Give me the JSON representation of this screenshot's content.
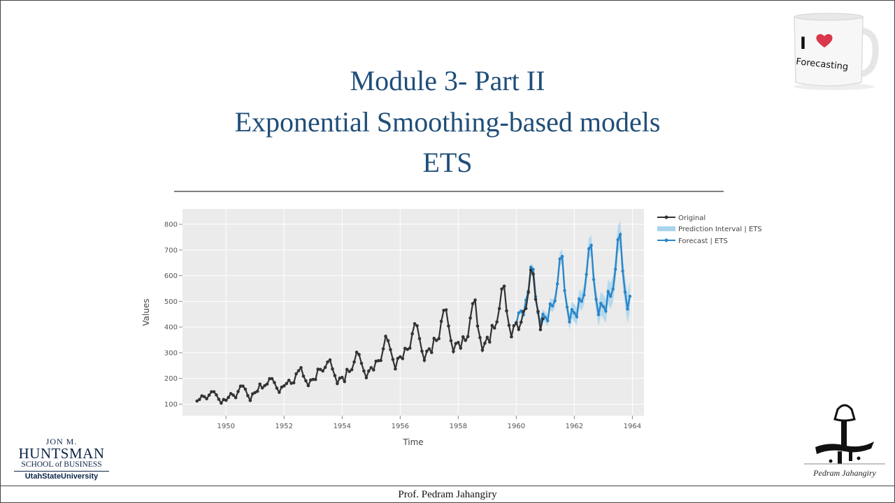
{
  "slide": {
    "title_line1": "Module 3- Part II",
    "title_line2": "Exponential Smoothing-based models",
    "title_line3": "ETS",
    "footer": "Prof. Pedram Jahangiry",
    "mug_text_1": "I",
    "mug_text_2": "Forecasting",
    "logo_left": {
      "line1": "JON M.",
      "line2": "HUNTSMAN",
      "line3": "SCHOOL of BUSINESS",
      "line4": "UtahStateUniversity"
    },
    "signature_name": "Pedram Jahangiry"
  },
  "colors": {
    "title": "#1f4e79",
    "original": "#333333",
    "forecast": "#2a86c8",
    "interval": "#a8d4ee",
    "plot_bg": "#ebebeb"
  },
  "chart_data": {
    "type": "line",
    "xlabel": "Time",
    "ylabel": "Values",
    "xlim": [
      1948.5,
      1964.4
    ],
    "ylim": [
      55,
      860
    ],
    "xticks": [
      1950,
      1952,
      1954,
      1956,
      1958,
      1960,
      1962,
      1964
    ],
    "yticks": [
      100,
      200,
      300,
      400,
      500,
      600,
      700,
      800
    ],
    "grid": true,
    "legend_position": "right",
    "series": [
      {
        "name": "Original",
        "x_start": 1949.0,
        "step": 0.0833333,
        "values": [
          112,
          118,
          132,
          129,
          121,
          135,
          148,
          148,
          136,
          119,
          104,
          118,
          115,
          126,
          141,
          135,
          125,
          149,
          170,
          170,
          158,
          133,
          114,
          140,
          145,
          150,
          178,
          163,
          172,
          178,
          199,
          199,
          184,
          162,
          146,
          166,
          171,
          180,
          193,
          181,
          183,
          218,
          230,
          242,
          209,
          191,
          172,
          194,
          196,
          196,
          236,
          235,
          229,
          243,
          264,
          272,
          237,
          211,
          180,
          201,
          204,
          188,
          235,
          227,
          234,
          264,
          302,
          293,
          259,
          229,
          203,
          229,
          242,
          233,
          267,
          269,
          270,
          315,
          364,
          347,
          312,
          274,
          237,
          278,
          284,
          277,
          317,
          313,
          318,
          374,
          413,
          405,
          355,
          306,
          271,
          306,
          315,
          301,
          356,
          348,
          355,
          422,
          465,
          467,
          404,
          347,
          305,
          336,
          340,
          318,
          362,
          348,
          363,
          435,
          491,
          505,
          404,
          359,
          310,
          337,
          360,
          342,
          406,
          396,
          420,
          472,
          548,
          559,
          463,
          407,
          362,
          405,
          417,
          391,
          419,
          461,
          472,
          535,
          622,
          606,
          508,
          461,
          390,
          432
        ]
      },
      {
        "name": "Forecast | ETS",
        "x_start": 1960.0,
        "step": 0.0833333,
        "values": [
          413,
          455,
          462,
          448,
          505,
          540,
          633,
          625,
          519,
          455,
          412,
          450,
          438,
          425,
          490,
          482,
          502,
          568,
          665,
          675,
          542,
          478,
          420,
          468,
          455,
          440,
          510,
          500,
          525,
          605,
          705,
          718,
          585,
          508,
          448,
          492,
          480,
          462,
          538,
          520,
          548,
          625,
          740,
          760,
          618,
          536,
          470,
          520
        ]
      }
    ],
    "interval": {
      "name": "Prediction Interval | ETS",
      "half_width_start": 8,
      "half_width_end": 58
    }
  }
}
